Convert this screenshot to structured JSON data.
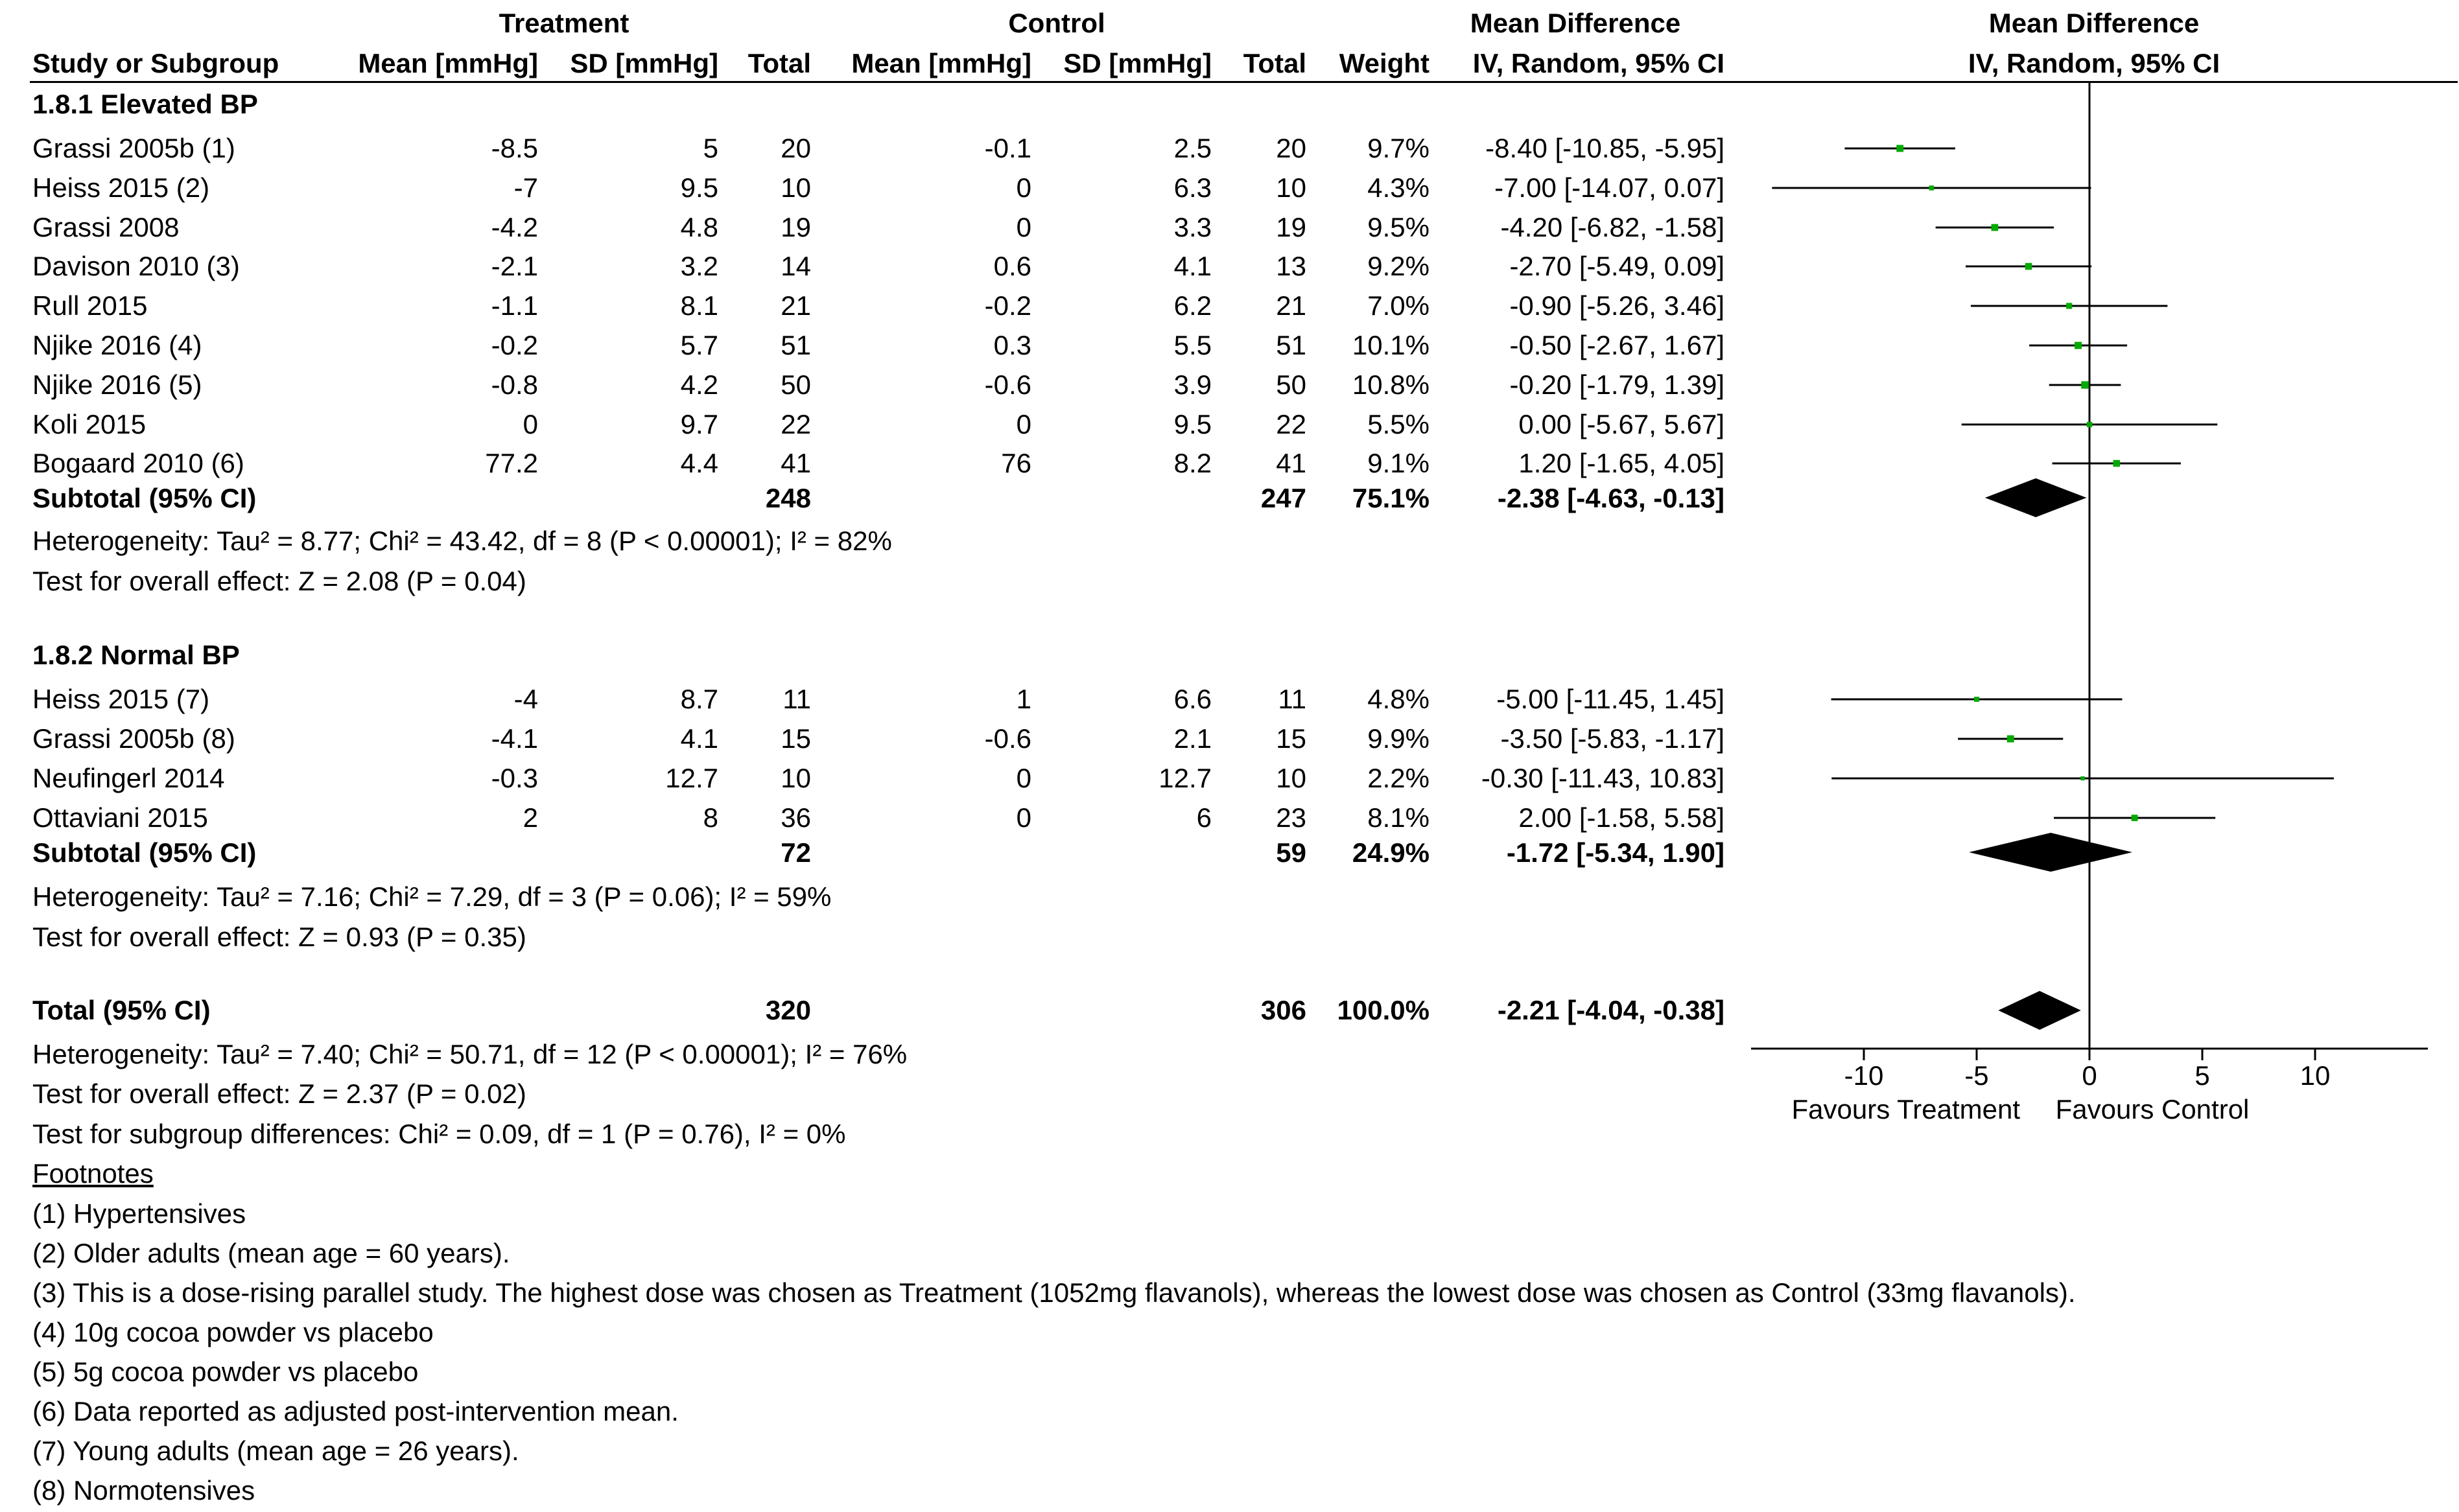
{
  "headers": {
    "treatment_group": "Treatment",
    "control_group": "Control",
    "md_group": "Mean Difference",
    "plot_group": "Mean Difference",
    "study": "Study or Subgroup",
    "t_mean": "Mean [mmHg]",
    "t_sd": "SD [mmHg]",
    "t_total": "Total",
    "c_mean": "Mean [mmHg]",
    "c_sd": "SD [mmHg]",
    "c_total": "Total",
    "weight": "Weight",
    "md_method": "IV, Random, 95% CI",
    "plot_method": "IV, Random, 95% CI"
  },
  "subgroups": [
    {
      "title": "1.8.1 Elevated BP",
      "subtotal_label": "Subtotal (95% CI)",
      "subtotal_t_total": "248",
      "subtotal_c_total": "247",
      "subtotal_weight": "75.1%",
      "subtotal_ci": "-2.38 [-4.63, -0.13]",
      "heterogeneity": "Heterogeneity: Tau² = 8.77; Chi² = 43.42, df = 8 (P < 0.00001); I² = 82%",
      "overall": "Test for overall effect: Z = 2.08 (P = 0.04)"
    },
    {
      "title": "1.8.2 Normal BP",
      "subtotal_label": "Subtotal (95% CI)",
      "subtotal_t_total": "72",
      "subtotal_c_total": "59",
      "subtotal_weight": "24.9%",
      "subtotal_ci": "-1.72 [-5.34, 1.90]",
      "heterogeneity": "Heterogeneity: Tau² = 7.16; Chi² = 7.29, df = 3 (P = 0.06); I² = 59%",
      "overall": "Test for overall effect: Z = 0.93 (P = 0.35)"
    }
  ],
  "studies": [
    {
      "name": "Grassi 2005b (1)",
      "t_mean": "-8.5",
      "t_sd": "5",
      "t_total": "20",
      "c_mean": "-0.1",
      "c_sd": "2.5",
      "c_total": "20",
      "weight": "9.7%",
      "ci": "-8.40 [-10.85, -5.95]"
    },
    {
      "name": "Heiss 2015 (2)",
      "t_mean": "-7",
      "t_sd": "9.5",
      "t_total": "10",
      "c_mean": "0",
      "c_sd": "6.3",
      "c_total": "10",
      "weight": "4.3%",
      "ci": "-7.00 [-14.07, 0.07]"
    },
    {
      "name": "Grassi 2008",
      "t_mean": "-4.2",
      "t_sd": "4.8",
      "t_total": "19",
      "c_mean": "0",
      "c_sd": "3.3",
      "c_total": "19",
      "weight": "9.5%",
      "ci": "-4.20 [-6.82, -1.58]"
    },
    {
      "name": "Davison 2010 (3)",
      "t_mean": "-2.1",
      "t_sd": "3.2",
      "t_total": "14",
      "c_mean": "0.6",
      "c_sd": "4.1",
      "c_total": "13",
      "weight": "9.2%",
      "ci": "-2.70 [-5.49, 0.09]"
    },
    {
      "name": "Rull 2015",
      "t_mean": "-1.1",
      "t_sd": "8.1",
      "t_total": "21",
      "c_mean": "-0.2",
      "c_sd": "6.2",
      "c_total": "21",
      "weight": "7.0%",
      "ci": "-0.90 [-5.26, 3.46]"
    },
    {
      "name": "Njike 2016 (4)",
      "t_mean": "-0.2",
      "t_sd": "5.7",
      "t_total": "51",
      "c_mean": "0.3",
      "c_sd": "5.5",
      "c_total": "51",
      "weight": "10.1%",
      "ci": "-0.50 [-2.67, 1.67]"
    },
    {
      "name": "Njike 2016 (5)",
      "t_mean": "-0.8",
      "t_sd": "4.2",
      "t_total": "50",
      "c_mean": "-0.6",
      "c_sd": "3.9",
      "c_total": "50",
      "weight": "10.8%",
      "ci": "-0.20 [-1.79, 1.39]"
    },
    {
      "name": "Koli 2015",
      "t_mean": "0",
      "t_sd": "9.7",
      "t_total": "22",
      "c_mean": "0",
      "c_sd": "9.5",
      "c_total": "22",
      "weight": "5.5%",
      "ci": "0.00 [-5.67, 5.67]"
    },
    {
      "name": "Bogaard 2010 (6)",
      "t_mean": "77.2",
      "t_sd": "4.4",
      "t_total": "41",
      "c_mean": "76",
      "c_sd": "8.2",
      "c_total": "41",
      "weight": "9.1%",
      "ci": "1.20 [-1.65, 4.05]"
    },
    {
      "name": "Heiss 2015 (7)",
      "t_mean": "-4",
      "t_sd": "8.7",
      "t_total": "11",
      "c_mean": "1",
      "c_sd": "6.6",
      "c_total": "11",
      "weight": "4.8%",
      "ci": "-5.00 [-11.45, 1.45]"
    },
    {
      "name": "Grassi 2005b (8)",
      "t_mean": "-4.1",
      "t_sd": "4.1",
      "t_total": "15",
      "c_mean": "-0.6",
      "c_sd": "2.1",
      "c_total": "15",
      "weight": "9.9%",
      "ci": "-3.50 [-5.83, -1.17]"
    },
    {
      "name": "Neufingerl 2014",
      "t_mean": "-0.3",
      "t_sd": "12.7",
      "t_total": "10",
      "c_mean": "0",
      "c_sd": "12.7",
      "c_total": "10",
      "weight": "2.2%",
      "ci": "-0.30 [-11.43, 10.83]"
    },
    {
      "name": "Ottaviani 2015",
      "t_mean": "2",
      "t_sd": "8",
      "t_total": "36",
      "c_mean": "0",
      "c_sd": "6",
      "c_total": "23",
      "weight": "8.1%",
      "ci": "2.00 [-1.58, 5.58]"
    }
  ],
  "total": {
    "label": "Total (95% CI)",
    "t_total": "320",
    "c_total": "306",
    "weight": "100.0%",
    "ci": "-2.21 [-4.04, -0.38]",
    "heterogeneity": "Heterogeneity: Tau² = 7.40; Chi² = 50.71, df = 12 (P < 0.00001); I² = 76%",
    "overall": "Test for overall effect: Z = 2.37 (P = 0.02)",
    "subgroup_diff": "Test for subgroup differences: Chi² = 0.09, df = 1 (P = 0.76), I² = 0%"
  },
  "footnotes": {
    "title": "Footnotes",
    "items": [
      "(1) Hypertensives",
      "(2) Older adults (mean age = 60 years).",
      "(3) This is a dose-rising parallel study. The highest dose was chosen as Treatment (1052mg flavanols), whereas the lowest dose was chosen as Control (33mg flavanols).",
      "(4) 10g cocoa powder vs placebo",
      "(5) 5g cocoa powder vs placebo",
      "(6) Data reported as adjusted post-intervention mean.",
      "(7) Young adults (mean age = 26 years).",
      "(8) Normotensives"
    ]
  },
  "chart_data": {
    "type": "forest",
    "title": "Mean Difference IV, Random, 95% CI",
    "xlabel_left": "Favours Treatment",
    "xlabel_right": "Favours Control",
    "xlim": [
      -15,
      15
    ],
    "xticks": [
      -10,
      -5,
      0,
      5,
      10
    ],
    "xtick_labels": [
      "-10",
      "-5",
      "0",
      "5",
      "10"
    ],
    "colors": {
      "study_marker": "#00aa00",
      "diamond": "#000000",
      "line": "#000000"
    },
    "studies": [
      {
        "label": "Grassi 2005b (1)",
        "md": -8.4,
        "lo": -10.85,
        "hi": -5.95,
        "weight": 9.7
      },
      {
        "label": "Heiss 2015 (2)",
        "md": -7.0,
        "lo": -14.07,
        "hi": 0.07,
        "weight": 4.3
      },
      {
        "label": "Grassi 2008",
        "md": -4.2,
        "lo": -6.82,
        "hi": -1.58,
        "weight": 9.5
      },
      {
        "label": "Davison 2010 (3)",
        "md": -2.7,
        "lo": -5.49,
        "hi": 0.09,
        "weight": 9.2
      },
      {
        "label": "Rull 2015",
        "md": -0.9,
        "lo": -5.26,
        "hi": 3.46,
        "weight": 7.0
      },
      {
        "label": "Njike 2016 (4)",
        "md": -0.5,
        "lo": -2.67,
        "hi": 1.67,
        "weight": 10.1
      },
      {
        "label": "Njike 2016 (5)",
        "md": -0.2,
        "lo": -1.79,
        "hi": 1.39,
        "weight": 10.8
      },
      {
        "label": "Koli 2015",
        "md": 0.0,
        "lo": -5.67,
        "hi": 5.67,
        "weight": 5.5
      },
      {
        "label": "Bogaard 2010 (6)",
        "md": 1.2,
        "lo": -1.65,
        "hi": 4.05,
        "weight": 9.1
      },
      {
        "label": "Heiss 2015 (7)",
        "md": -5.0,
        "lo": -11.45,
        "hi": 1.45,
        "weight": 4.8
      },
      {
        "label": "Grassi 2005b (8)",
        "md": -3.5,
        "lo": -5.83,
        "hi": -1.17,
        "weight": 9.9
      },
      {
        "label": "Neufingerl 2014",
        "md": -0.3,
        "lo": -11.43,
        "hi": 10.83,
        "weight": 2.2
      },
      {
        "label": "Ottaviani 2015",
        "md": 2.0,
        "lo": -1.58,
        "hi": 5.58,
        "weight": 8.1
      }
    ],
    "summaries": [
      {
        "label": "Subtotal 1.8.1 Elevated BP",
        "md": -2.38,
        "lo": -4.63,
        "hi": -0.13
      },
      {
        "label": "Subtotal 1.8.2 Normal BP",
        "md": -1.72,
        "lo": -5.34,
        "hi": 1.9
      },
      {
        "label": "Total (95% CI)",
        "md": -2.21,
        "lo": -4.04,
        "hi": -0.38
      }
    ]
  }
}
